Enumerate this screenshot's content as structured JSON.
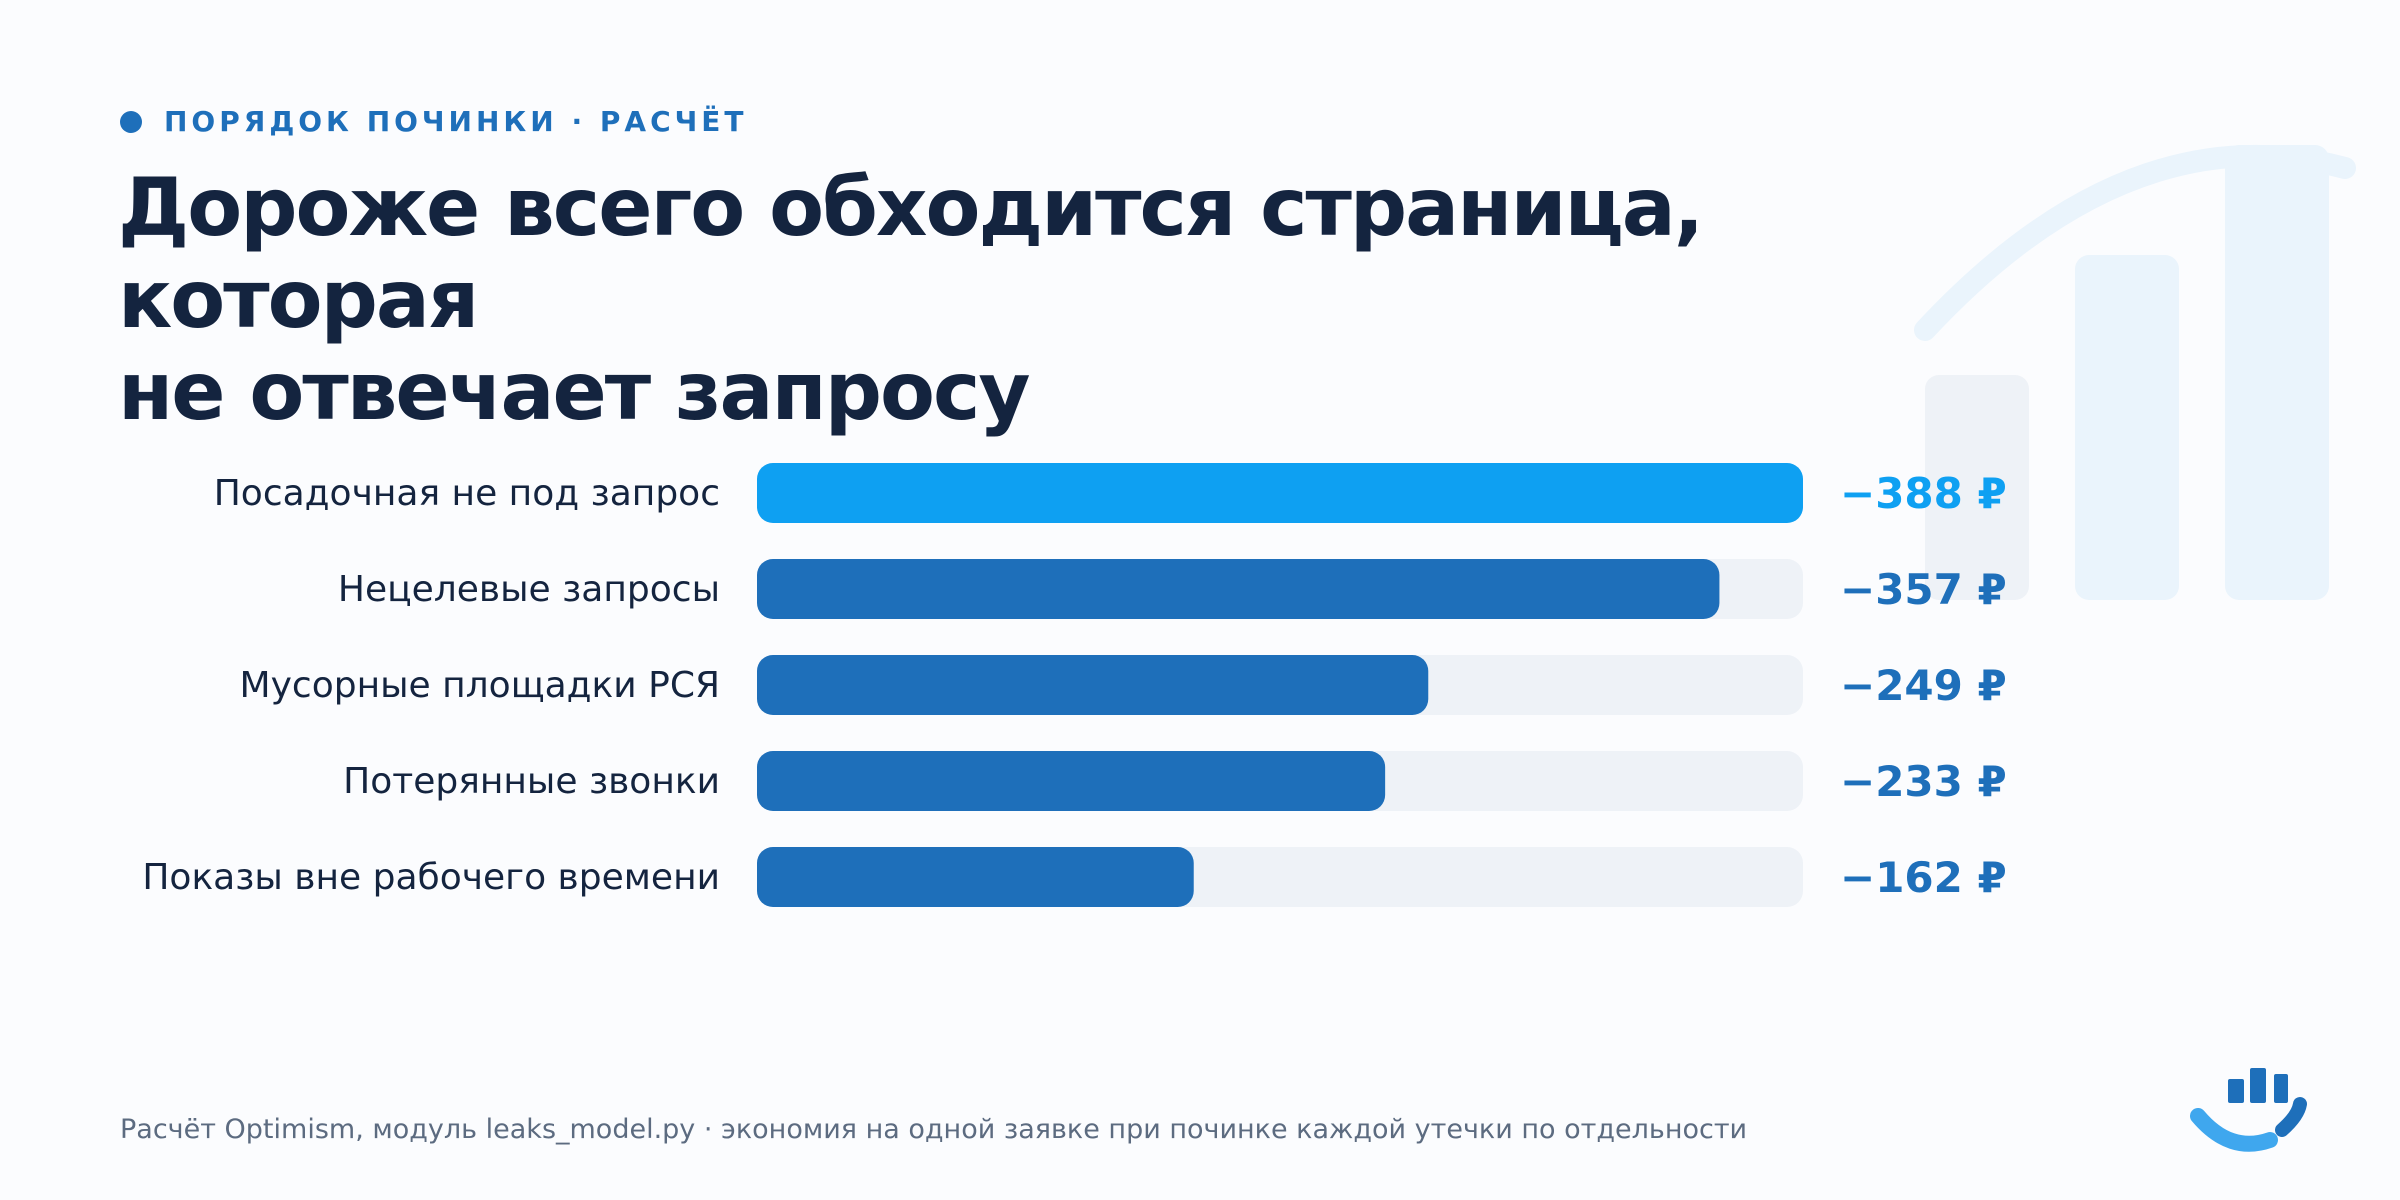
{
  "header": {
    "eyebrow": "ПОРЯДОК ПОЧИНКИ · РАСЧЁТ",
    "title_line1": "Дороже всего обходится страница, которая",
    "title_line2": "не отвечает запросу"
  },
  "footer": {
    "note": "Расчёт Optimism, модуль leaks_model.py · экономия на одной заявке при починке каждой утечки по отдельности"
  },
  "colors": {
    "highlight_bar": "#0EA0F2",
    "bar": "#1E6FBA",
    "track": "#EEF2F7",
    "label": "#14243F",
    "highlight_value": "#0EA0F2",
    "value": "#1E6FBA"
  },
  "icons": {
    "background": "growth-chart-icon",
    "logo": "bar-chart-logo-icon"
  },
  "chart_data": {
    "type": "bar",
    "orientation": "horizontal",
    "categories": [
      "Посадочная не под запрос",
      "Нецелевые запросы",
      "Мусорные площадки РСЯ",
      "Потерянные звонки",
      "Показы вне рабочего времени"
    ],
    "values": [
      -388,
      -357,
      -249,
      -233,
      -162
    ],
    "value_labels": [
      "−388 ₽",
      "−357 ₽",
      "−249 ₽",
      "−233 ₽",
      "−162 ₽"
    ],
    "highlighted_index": 0,
    "xlim": [
      0,
      388
    ],
    "grid": false,
    "legend": "none"
  }
}
